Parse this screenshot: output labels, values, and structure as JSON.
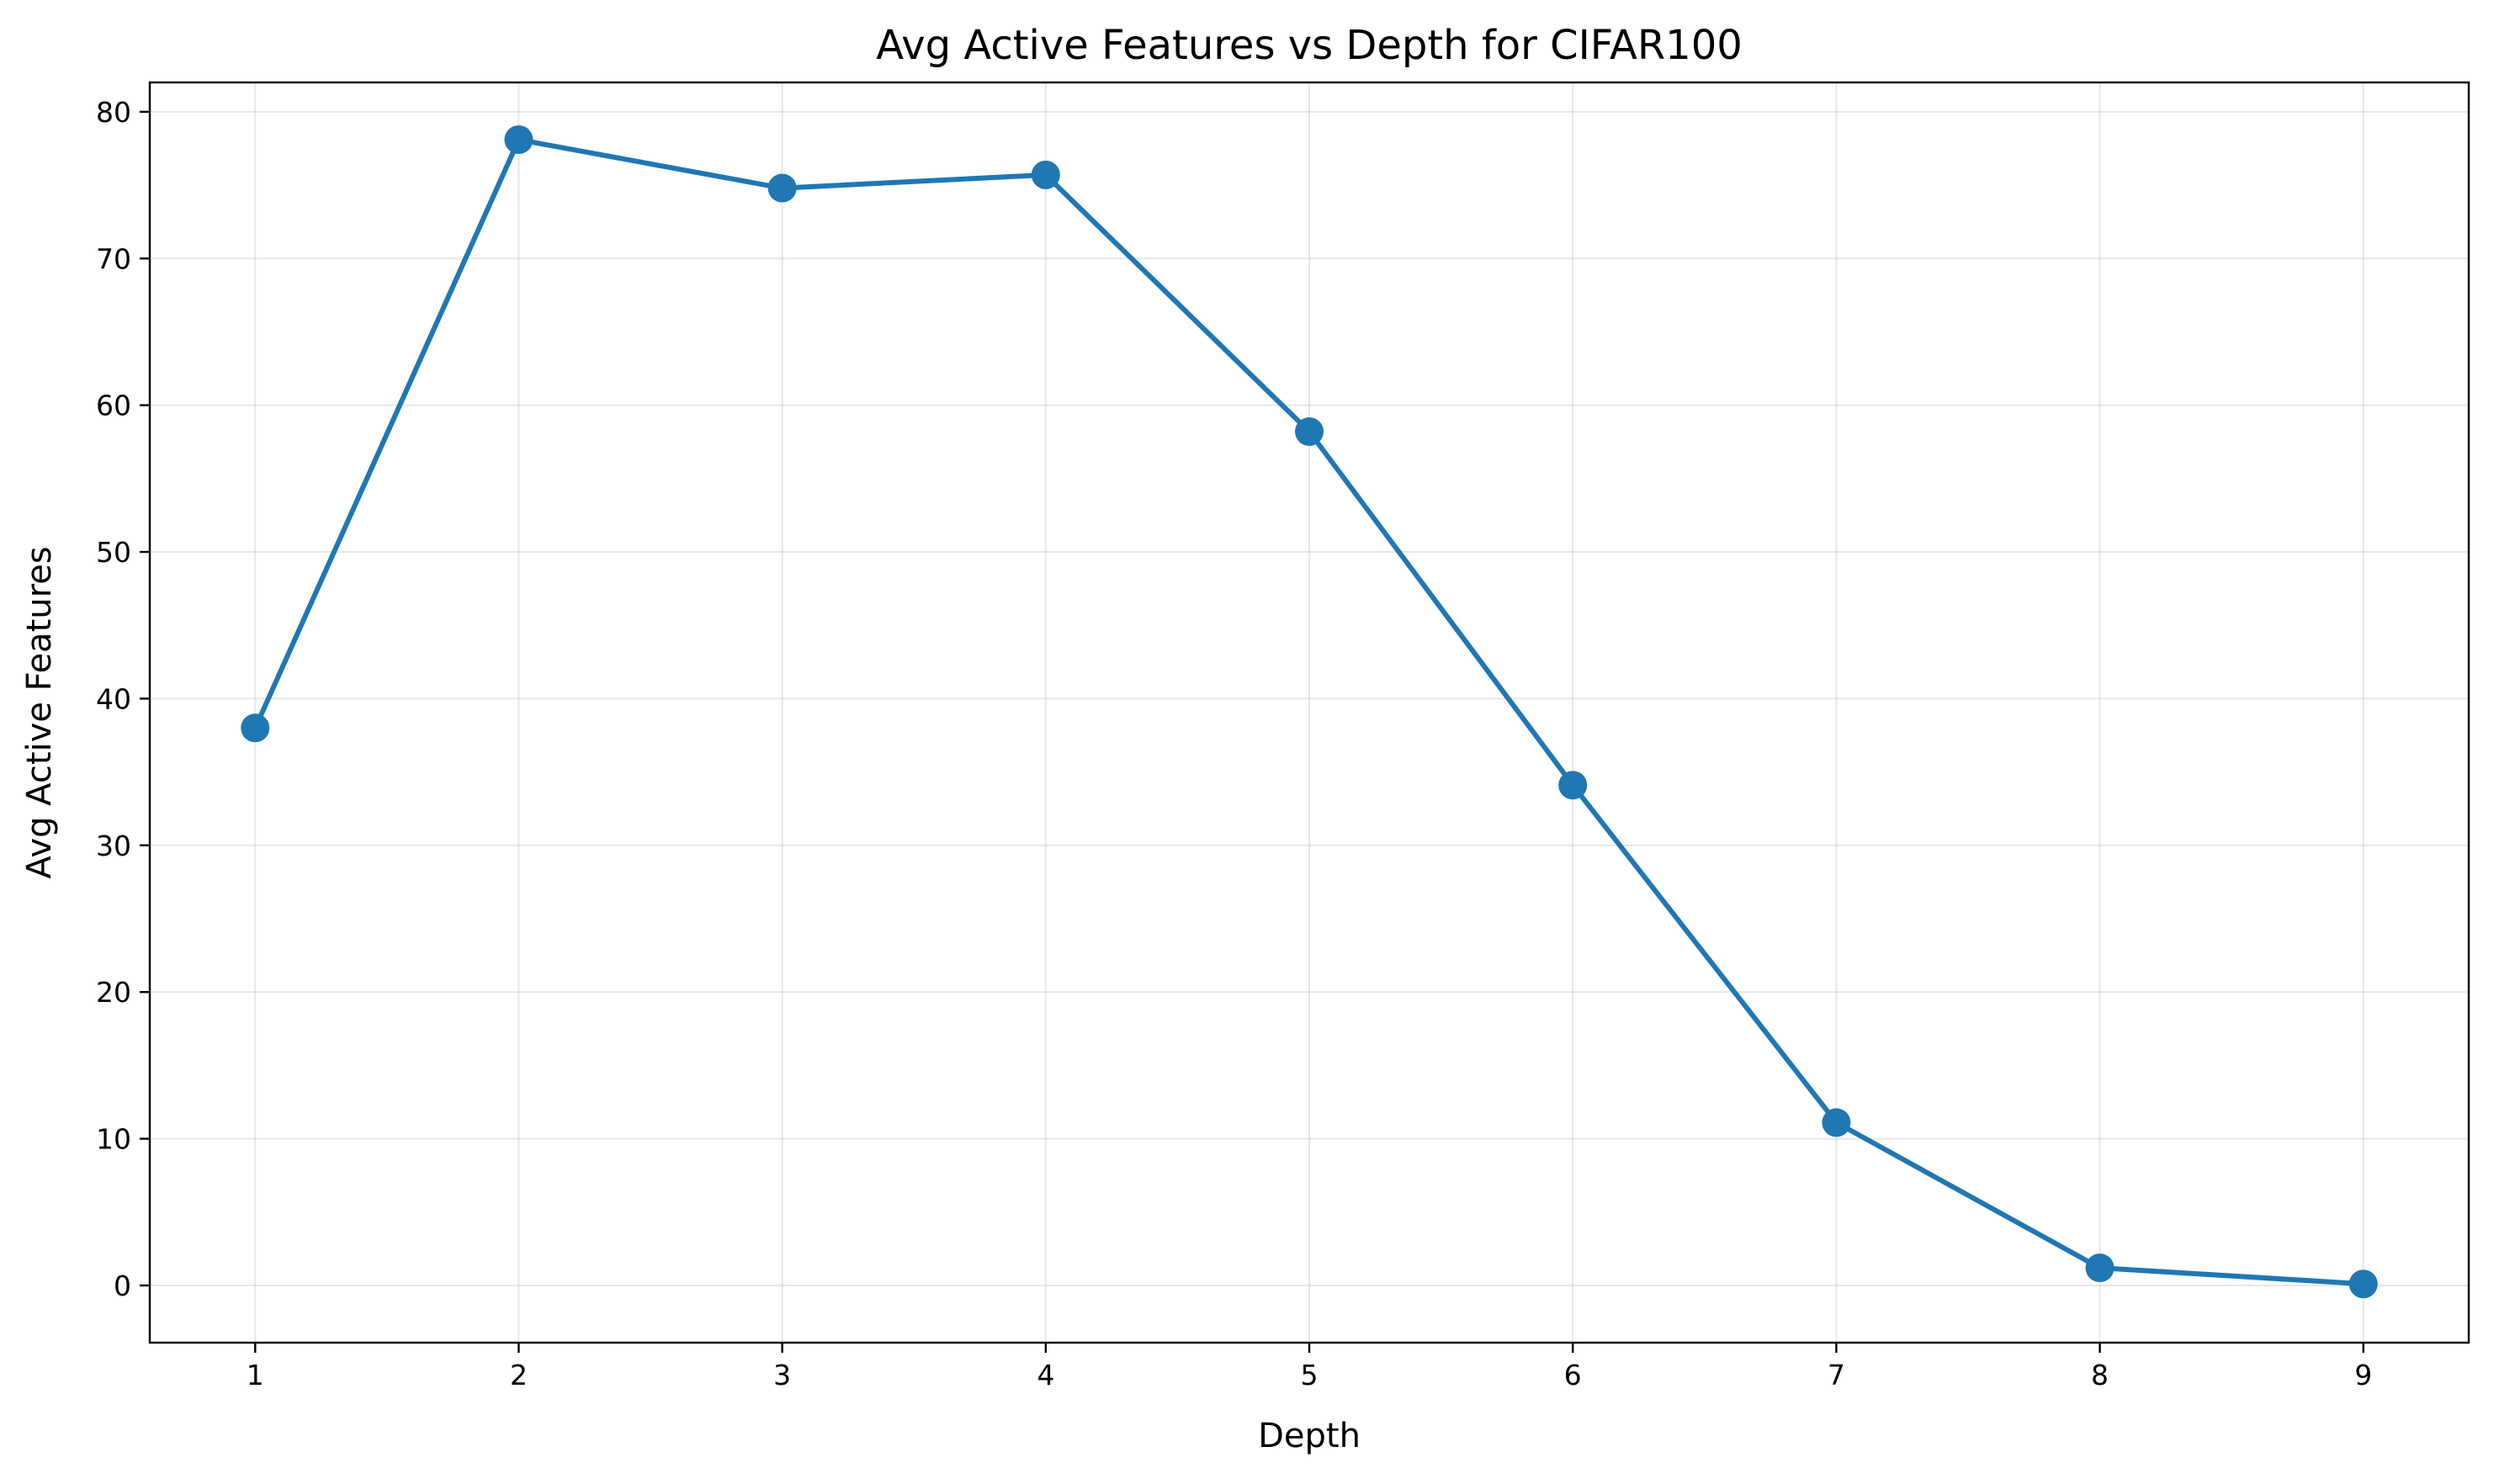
{
  "chart_data": {
    "type": "line",
    "title": "Avg Active Features vs Depth for CIFAR100",
    "xlabel": "Depth",
    "ylabel": "Avg Active Features",
    "x": [
      1,
      2,
      3,
      4,
      5,
      6,
      7,
      8,
      9
    ],
    "series": [
      {
        "values": [
          38.0,
          78.1,
          74.8,
          75.7,
          58.2,
          34.1,
          11.1,
          1.2,
          0.1
        ]
      }
    ],
    "xticks": [
      1,
      2,
      3,
      4,
      5,
      6,
      7,
      8,
      9
    ],
    "yticks": [
      0,
      10,
      20,
      30,
      40,
      50,
      60,
      70,
      80
    ],
    "xlim": [
      0.6,
      9.4
    ],
    "ylim": [
      -3.9,
      82.0
    ],
    "grid": true,
    "legend": "none",
    "line_color": "#1f77b4",
    "marker": "circle"
  }
}
